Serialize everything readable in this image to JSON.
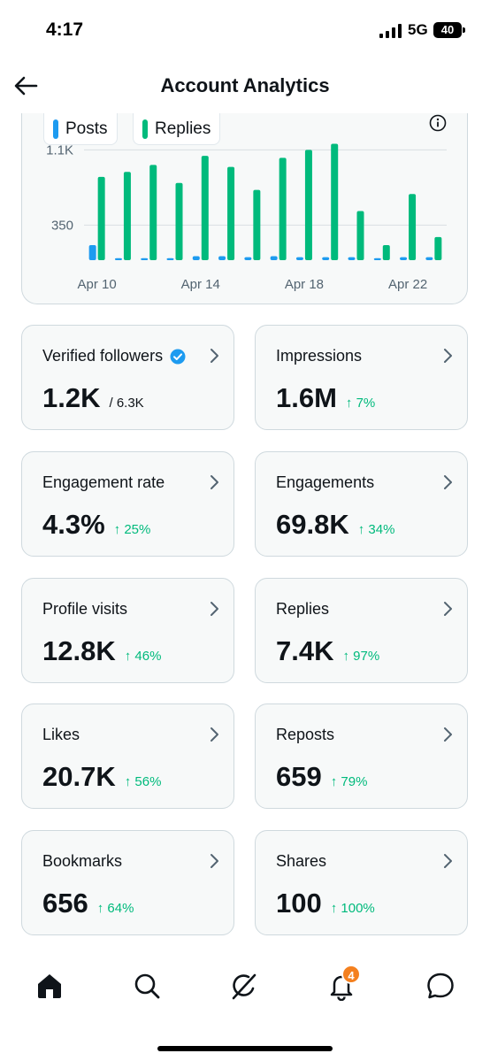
{
  "status_bar": {
    "time": "4:17",
    "network": "5G",
    "battery": "40"
  },
  "header": {
    "title": "Account Analytics"
  },
  "chart": {
    "legend_posts": "Posts",
    "legend_replies": "Replies",
    "colors": {
      "posts": "#1d9bf0",
      "replies": "#00ba7c",
      "grid": "#d9dee2",
      "axis_text": "#536471"
    }
  },
  "chart_data": {
    "type": "bar",
    "ylim": [
      0,
      1200
    ],
    "yticks": [
      {
        "value": 350,
        "label": "350"
      },
      {
        "value": 1100,
        "label": "1.1K"
      }
    ],
    "x_tick_labels": [
      {
        "index": 0,
        "label": "Apr 10"
      },
      {
        "index": 4,
        "label": "Apr 14"
      },
      {
        "index": 8,
        "label": "Apr 18"
      },
      {
        "index": 12,
        "label": "Apr 22"
      }
    ],
    "categories": [
      "Apr 10",
      "Apr 11",
      "Apr 12",
      "Apr 13",
      "Apr 14",
      "Apr 15",
      "Apr 16",
      "Apr 17",
      "Apr 18",
      "Apr 19",
      "Apr 20",
      "Apr 21",
      "Apr 22",
      "Apr 23"
    ],
    "series": [
      {
        "name": "Posts",
        "values": [
          150,
          20,
          20,
          20,
          40,
          40,
          30,
          40,
          30,
          30,
          30,
          20,
          30,
          30
        ]
      },
      {
        "name": "Replies",
        "values": [
          830,
          880,
          950,
          770,
          1040,
          930,
          700,
          1020,
          1100,
          1160,
          490,
          150,
          660,
          230
        ]
      }
    ]
  },
  "stats": [
    {
      "label": "Verified followers",
      "value": "1.2K",
      "total": "/ 6.3K",
      "change": "",
      "verified": true
    },
    {
      "label": "Impressions",
      "value": "1.6M",
      "total": "",
      "change": "↑ 7%"
    },
    {
      "label": "Engagement rate",
      "value": "4.3%",
      "total": "",
      "change": "↑ 25%"
    },
    {
      "label": "Engagements",
      "value": "69.8K",
      "total": "",
      "change": "↑ 34%"
    },
    {
      "label": "Profile visits",
      "value": "12.8K",
      "total": "",
      "change": "↑ 46%"
    },
    {
      "label": "Replies",
      "value": "7.4K",
      "total": "",
      "change": "↑ 97%"
    },
    {
      "label": "Likes",
      "value": "20.7K",
      "total": "",
      "change": "↑ 56%"
    },
    {
      "label": "Reposts",
      "value": "659",
      "total": "",
      "change": "↑ 79%"
    },
    {
      "label": "Bookmarks",
      "value": "656",
      "total": "",
      "change": "↑ 64%"
    },
    {
      "label": "Shares",
      "value": "100",
      "total": "",
      "change": "↑ 100%"
    }
  ],
  "bottom_nav": {
    "items": [
      "home-icon",
      "search-icon",
      "grok-icon",
      "bell-icon",
      "messages-icon"
    ],
    "notifications_badge": "4"
  }
}
